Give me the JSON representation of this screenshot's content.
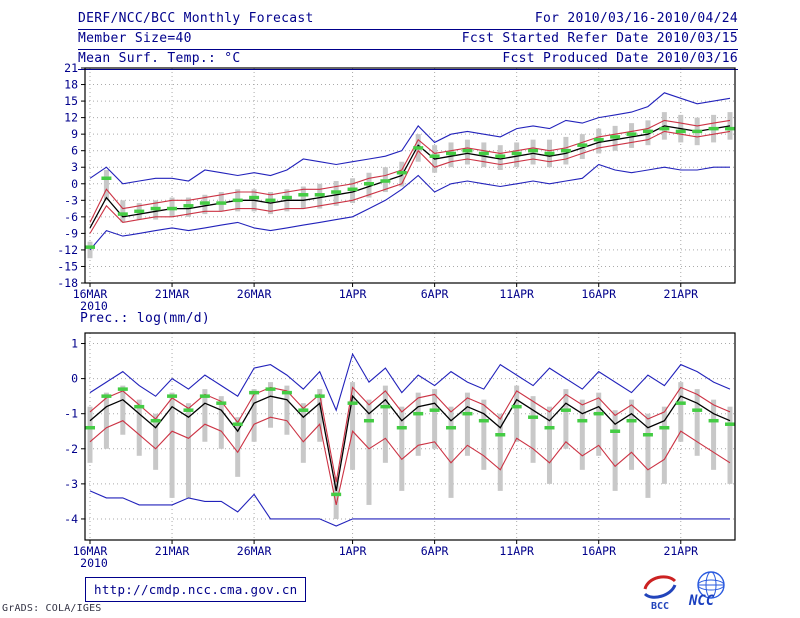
{
  "header": {
    "title": "DERF/NCC/BCC Monthly Forecast",
    "for_range": "For 2010/03/16-2010/04/24",
    "member_size": "Member Size=40",
    "fcst_started": "Fcst Started Refer Date 2010/03/15",
    "fcst_produced": "Fcst Produced Date 2010/03/16"
  },
  "footer": {
    "url": "http://cmdp.ncc.cma.gov.cn",
    "credit": "GrADS: COLA/IGES",
    "bcc_label": "BCC",
    "ncc_label": "NCC"
  },
  "colors": {
    "accent_text": "#00008b",
    "line_blue": "#2222bb",
    "line_red": "#cc3344",
    "line_black": "#000000",
    "obs_green": "#44cc44",
    "bar_gray": "#c8c8c8",
    "grid_gray": "#aaaaaa",
    "frame_black": "#000000"
  },
  "chart_data": [
    {
      "type": "line",
      "title": "Mean Surf. Temp.: °C",
      "n_days": 40,
      "x_tick_labels": [
        "16MAR",
        "21MAR",
        "26MAR",
        "1APR",
        "6APR",
        "11APR",
        "16APR",
        "21APR"
      ],
      "x_tick_positions": [
        0,
        5,
        10,
        16,
        21,
        26,
        31,
        36
      ],
      "x_year_label": "2010",
      "ylim": [
        -18,
        21
      ],
      "y_ticks": [
        21,
        18,
        15,
        12,
        9,
        6,
        3,
        0,
        -3,
        -6,
        -9,
        -12,
        -15,
        -18
      ],
      "grid": true,
      "series": [
        {
          "name": "ensemble-max",
          "color": "#2222bb",
          "values": [
            1.0,
            3.0,
            0.0,
            0.5,
            1.0,
            1.0,
            0.5,
            2.5,
            2.0,
            1.5,
            2.0,
            1.5,
            2.5,
            4.5,
            4.0,
            3.5,
            4.0,
            4.5,
            5.0,
            6.0,
            10.5,
            7.5,
            9.0,
            9.5,
            9.0,
            8.5,
            10.0,
            10.5,
            10.0,
            11.5,
            11.0,
            12.0,
            12.5,
            13.0,
            14.0,
            16.5,
            15.5,
            14.5,
            15.0,
            15.5
          ]
        },
        {
          "name": "upper-band",
          "color": "#cc3344",
          "values": [
            -7.0,
            -1.0,
            -4.5,
            -4.0,
            -3.5,
            -3.0,
            -3.0,
            -2.5,
            -2.0,
            -1.5,
            -1.5,
            -2.0,
            -1.5,
            -1.0,
            -1.0,
            -0.5,
            0.0,
            1.0,
            1.5,
            2.5,
            8.0,
            5.5,
            6.0,
            6.5,
            6.0,
            5.5,
            6.0,
            6.5,
            6.0,
            6.5,
            7.5,
            8.5,
            9.0,
            9.5,
            10.0,
            11.5,
            11.0,
            10.5,
            11.0,
            11.5
          ]
        },
        {
          "name": "ensemble-mean",
          "color": "#000000",
          "values": [
            -8.0,
            -2.5,
            -6.0,
            -5.5,
            -5.0,
            -4.5,
            -4.5,
            -4.0,
            -3.5,
            -3.0,
            -3.0,
            -3.5,
            -3.0,
            -3.0,
            -2.5,
            -2.0,
            -1.5,
            -0.5,
            0.5,
            1.5,
            7.0,
            4.5,
            5.0,
            5.5,
            5.0,
            4.5,
            5.0,
            5.5,
            5.0,
            5.5,
            6.5,
            7.5,
            8.0,
            8.5,
            9.0,
            10.5,
            10.0,
            9.5,
            10.0,
            10.5
          ]
        },
        {
          "name": "lower-band",
          "color": "#cc3344",
          "values": [
            -9.0,
            -4.0,
            -7.0,
            -6.5,
            -6.0,
            -6.0,
            -5.5,
            -5.0,
            -5.0,
            -4.5,
            -4.5,
            -5.0,
            -4.5,
            -4.5,
            -4.0,
            -3.5,
            -3.0,
            -2.0,
            -1.0,
            0.0,
            6.0,
            3.0,
            4.0,
            4.5,
            4.0,
            3.5,
            4.0,
            4.5,
            4.0,
            4.5,
            5.5,
            6.5,
            7.0,
            7.5,
            8.0,
            9.5,
            9.0,
            8.5,
            9.0,
            9.5
          ]
        },
        {
          "name": "ensemble-min",
          "color": "#2222bb",
          "values": [
            -12.0,
            -8.5,
            -9.5,
            -9.0,
            -8.5,
            -8.0,
            -8.5,
            -8.0,
            -7.5,
            -7.0,
            -8.0,
            -8.5,
            -8.0,
            -7.5,
            -7.0,
            -6.5,
            -6.0,
            -4.5,
            -3.0,
            -1.0,
            1.5,
            -1.5,
            0.0,
            0.5,
            0.0,
            -0.5,
            0.0,
            0.5,
            0.0,
            0.5,
            1.0,
            3.5,
            2.5,
            2.0,
            2.5,
            3.0,
            2.5,
            2.5,
            3.0,
            3.0
          ]
        }
      ],
      "observation_dashes": {
        "color": "#44cc44",
        "values": [
          -11.5,
          1.0,
          -5.5,
          -5.0,
          -4.5,
          -4.5,
          -4.0,
          -3.5,
          -3.5,
          -3.0,
          -2.5,
          -3.0,
          -2.5,
          -2.0,
          -2.0,
          -1.5,
          -1.0,
          0.0,
          0.5,
          2.0,
          6.5,
          5.0,
          5.5,
          6.0,
          5.5,
          5.0,
          5.5,
          6.0,
          5.5,
          6.0,
          7.0,
          8.0,
          8.5,
          9.0,
          9.5,
          10.0,
          9.5,
          9.5,
          10.0,
          10.0
        ]
      },
      "member_spread_bars": {
        "color": "#c8c8c8",
        "low": [
          -13.5,
          -3.0,
          -7.0,
          -6.5,
          -6.5,
          -6.0,
          -6.0,
          -5.5,
          -5.0,
          -5.0,
          -5.0,
          -5.5,
          -5.0,
          -4.5,
          -4.5,
          -4.0,
          -3.5,
          -2.5,
          -1.5,
          -0.5,
          4.0,
          2.0,
          3.0,
          3.5,
          3.0,
          2.5,
          3.0,
          3.5,
          3.0,
          3.5,
          4.5,
          5.5,
          6.0,
          6.5,
          7.0,
          8.0,
          7.5,
          7.0,
          7.5,
          8.0
        ],
        "high": [
          -10.5,
          2.5,
          -3.0,
          -3.5,
          -3.0,
          -2.5,
          -2.5,
          -2.0,
          -1.5,
          -1.0,
          -1.0,
          -1.5,
          -1.0,
          -0.5,
          0.0,
          0.5,
          1.0,
          2.0,
          3.0,
          4.0,
          9.0,
          7.0,
          7.5,
          8.0,
          7.5,
          7.0,
          7.5,
          8.0,
          8.0,
          8.5,
          9.0,
          10.0,
          10.5,
          11.0,
          11.5,
          13.0,
          12.5,
          12.0,
          12.5,
          13.0
        ]
      }
    },
    {
      "type": "line",
      "title": "Prec.: log(mm/d)",
      "n_days": 40,
      "x_tick_labels": [
        "16MAR",
        "21MAR",
        "26MAR",
        "1APR",
        "6APR",
        "11APR",
        "16APR",
        "21APR"
      ],
      "x_tick_positions": [
        0,
        5,
        10,
        16,
        21,
        26,
        31,
        36
      ],
      "x_year_label": "2010",
      "ylim": [
        -4.6,
        1.3
      ],
      "y_ticks": [
        1,
        0,
        -1,
        -2,
        -3,
        -4
      ],
      "grid": true,
      "series": [
        {
          "name": "ensemble-max",
          "color": "#2222bb",
          "values": [
            -0.4,
            -0.1,
            0.2,
            -0.2,
            -0.5,
            0.0,
            -0.3,
            0.1,
            -0.2,
            -0.5,
            0.3,
            0.4,
            0.1,
            -0.3,
            0.2,
            -0.9,
            0.7,
            -0.1,
            0.3,
            -0.4,
            0.1,
            -0.2,
            0.2,
            -0.1,
            -0.3,
            0.4,
            0.1,
            -0.2,
            0.3,
            0.0,
            -0.3,
            0.2,
            -0.1,
            -0.4,
            0.1,
            -0.2,
            0.4,
            0.2,
            -0.1,
            -0.3
          ]
        },
        {
          "name": "upper-band",
          "color": "#cc3344",
          "values": [
            -0.95,
            -0.55,
            -0.35,
            -0.75,
            -1.15,
            -0.55,
            -0.85,
            -0.45,
            -0.65,
            -1.25,
            -0.45,
            -0.25,
            -0.35,
            -0.85,
            -0.45,
            -2.95,
            -0.25,
            -0.75,
            -0.35,
            -0.95,
            -0.55,
            -0.45,
            -0.95,
            -0.55,
            -0.75,
            -1.15,
            -0.35,
            -0.65,
            -0.95,
            -0.45,
            -0.75,
            -0.55,
            -1.05,
            -0.75,
            -1.15,
            -0.95,
            -0.25,
            -0.45,
            -0.75,
            -0.95
          ]
        },
        {
          "name": "ensemble-mean",
          "color": "#000000",
          "values": [
            -1.2,
            -0.8,
            -0.6,
            -1.0,
            -1.4,
            -0.8,
            -1.1,
            -0.7,
            -0.9,
            -1.5,
            -0.7,
            -0.5,
            -0.6,
            -1.1,
            -0.7,
            -3.2,
            -0.5,
            -1.0,
            -0.6,
            -1.2,
            -0.8,
            -0.7,
            -1.2,
            -0.8,
            -1.0,
            -1.4,
            -0.6,
            -0.9,
            -1.2,
            -0.7,
            -1.0,
            -0.8,
            -1.3,
            -1.0,
            -1.4,
            -1.2,
            -0.5,
            -0.7,
            -1.0,
            -1.2
          ]
        },
        {
          "name": "lower-band",
          "color": "#cc3344",
          "values": [
            -1.8,
            -1.4,
            -1.2,
            -1.6,
            -2.0,
            -1.5,
            -1.7,
            -1.3,
            -1.5,
            -2.1,
            -1.3,
            -1.1,
            -1.2,
            -1.8,
            -1.3,
            -3.6,
            -1.5,
            -2.0,
            -1.7,
            -2.3,
            -1.9,
            -1.8,
            -2.4,
            -1.9,
            -2.2,
            -2.6,
            -1.7,
            -2.0,
            -2.4,
            -1.8,
            -2.2,
            -1.9,
            -2.5,
            -2.1,
            -2.6,
            -2.3,
            -1.5,
            -1.8,
            -2.1,
            -2.4
          ]
        },
        {
          "name": "ensemble-min",
          "color": "#2222bb",
          "values": [
            -3.2,
            -3.4,
            -3.4,
            -3.6,
            -3.6,
            -3.6,
            -3.4,
            -3.5,
            -3.5,
            -3.8,
            -3.3,
            -4.0,
            -4.0,
            -4.0,
            -4.0,
            -4.2,
            -4.0,
            -4.0,
            -4.0,
            -4.0,
            -4.0,
            -4.0,
            -4.0,
            -4.0,
            -4.0,
            -4.0,
            -4.0,
            -4.0,
            -4.0,
            -4.0,
            -4.0,
            -4.0,
            -4.0,
            -4.0,
            -4.0,
            -4.0,
            -4.0,
            -4.0,
            -4.0,
            -4.0
          ]
        }
      ],
      "observation_dashes": {
        "color": "#44cc44",
        "values": [
          -1.4,
          -0.5,
          -0.3,
          -0.8,
          -1.2,
          -0.5,
          -0.9,
          -0.5,
          -0.7,
          -1.3,
          -0.4,
          -0.3,
          -0.4,
          -0.9,
          -0.5,
          -3.3,
          -0.7,
          -1.2,
          -0.8,
          -1.4,
          -1.0,
          -0.9,
          -1.4,
          -1.0,
          -1.2,
          -1.6,
          -0.8,
          -1.1,
          -1.4,
          -0.9,
          -1.2,
          -1.0,
          -1.5,
          -1.2,
          -1.6,
          -1.4,
          -0.7,
          -0.9,
          -1.2,
          -1.3
        ]
      },
      "member_spread_bars": {
        "color": "#c8c8c8",
        "low": [
          -2.4,
          -2.0,
          -1.6,
          -2.2,
          -2.6,
          -3.4,
          -3.4,
          -1.8,
          -2.0,
          -2.8,
          -1.8,
          -1.4,
          -1.6,
          -2.4,
          -1.8,
          -4.0,
          -2.6,
          -3.6,
          -2.4,
          -3.2,
          -2.2,
          -2.0,
          -3.4,
          -2.2,
          -2.6,
          -3.2,
          -1.8,
          -2.4,
          -3.0,
          -2.0,
          -2.6,
          -2.2,
          -3.2,
          -2.6,
          -3.4,
          -3.0,
          -1.8,
          -2.2,
          -2.6,
          -3.0
        ],
        "high": [
          -0.8,
          -0.4,
          -0.2,
          -0.6,
          -1.0,
          -0.4,
          -0.7,
          -0.3,
          -0.5,
          -1.1,
          -0.3,
          -0.1,
          -0.2,
          -0.7,
          -0.3,
          -2.8,
          -0.1,
          -0.6,
          -0.2,
          -0.8,
          -0.4,
          -0.3,
          -0.8,
          -0.4,
          -0.6,
          -1.0,
          -0.2,
          -0.5,
          -0.8,
          -0.3,
          -0.6,
          -0.4,
          -0.9,
          -0.6,
          -1.0,
          -0.8,
          -0.1,
          -0.3,
          -0.6,
          -0.8
        ]
      }
    }
  ]
}
